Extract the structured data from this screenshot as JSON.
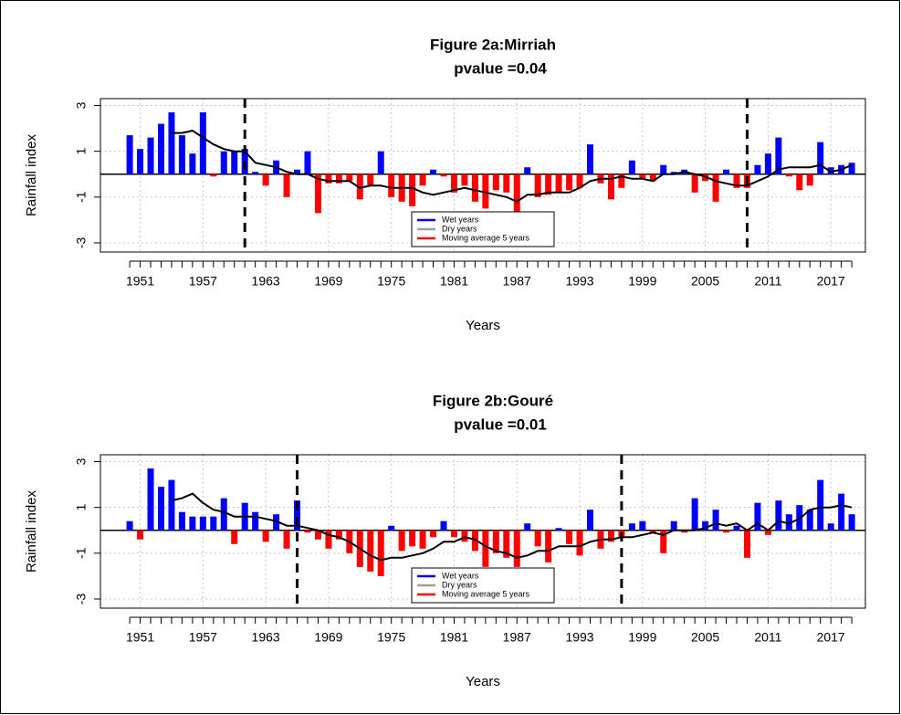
{
  "chart_data": [
    {
      "type": "bar",
      "title": "Figure 2a:Mirriah",
      "subtitle": "pvalue =0.04",
      "x_label": "Years",
      "y_label": "Rainfall index",
      "x": [
        1950,
        1951,
        1952,
        1953,
        1954,
        1955,
        1956,
        1957,
        1958,
        1959,
        1960,
        1961,
        1962,
        1963,
        1964,
        1965,
        1966,
        1967,
        1968,
        1969,
        1970,
        1971,
        1972,
        1973,
        1974,
        1975,
        1976,
        1977,
        1978,
        1979,
        1980,
        1981,
        1982,
        1983,
        1984,
        1985,
        1986,
        1987,
        1988,
        1989,
        1990,
        1991,
        1992,
        1993,
        1994,
        1995,
        1996,
        1997,
        1998,
        1999,
        2000,
        2001,
        2002,
        2003,
        2004,
        2005,
        2006,
        2007,
        2008,
        2009,
        2010,
        2011,
        2012,
        2013,
        2014,
        2015,
        2016,
        2017,
        2018,
        2019
      ],
      "values": [
        1.7,
        1.1,
        1.6,
        2.2,
        2.7,
        1.7,
        0.9,
        2.7,
        -0.1,
        1.0,
        1.0,
        1.1,
        0.1,
        -0.5,
        0.6,
        -1.0,
        0.2,
        1.0,
        -1.7,
        -0.4,
        -0.4,
        -0.3,
        -1.1,
        -0.5,
        1.0,
        -1.0,
        -1.2,
        -1.4,
        -0.5,
        0.2,
        -0.1,
        -0.8,
        -0.5,
        -1.2,
        -1.5,
        -0.7,
        -0.8,
        -1.7,
        0.3,
        -1.0,
        -0.9,
        -0.8,
        -0.7,
        -0.6,
        1.3,
        -0.4,
        -1.1,
        -0.6,
        0.6,
        -0.2,
        -0.3,
        0.4,
        0.1,
        0.2,
        -0.8,
        -0.3,
        -1.2,
        0.2,
        -0.6,
        -0.6,
        0.4,
        0.9,
        1.6,
        -0.1,
        -0.7,
        -0.5,
        1.4,
        0.3,
        0.4,
        0.5
      ],
      "moving_average": [
        null,
        null,
        null,
        null,
        1.8,
        1.8,
        1.9,
        1.6,
        1.3,
        1.1,
        1.0,
        1.0,
        0.5,
        0.4,
        0.3,
        0.1,
        0.0,
        0.0,
        -0.2,
        -0.3,
        -0.3,
        -0.3,
        -0.6,
        -0.5,
        -0.5,
        -0.6,
        -0.6,
        -0.6,
        -0.8,
        -0.9,
        -0.8,
        -0.7,
        -0.6,
        -0.7,
        -0.8,
        -0.9,
        -1.0,
        -1.2,
        -0.9,
        -0.9,
        -0.8,
        -0.8,
        -0.8,
        -0.6,
        -0.3,
        -0.2,
        -0.2,
        -0.1,
        -0.2,
        -0.2,
        -0.3,
        0.0,
        0.0,
        0.1,
        0.0,
        -0.1,
        -0.3,
        -0.4,
        -0.5,
        -0.5,
        -0.3,
        -0.1,
        0.2,
        0.3,
        0.3,
        0.3,
        0.4,
        0.1,
        0.2,
        0.4
      ],
      "positive_color": "#0000ff",
      "negative_color": "#ff0000",
      "line_color": "#000000",
      "breaks": [
        1961,
        2009
      ],
      "legend_items": [
        {
          "name": "Wet years",
          "color": "#0000ff"
        },
        {
          "name": "Dry years",
          "color": "#a0a0a0"
        },
        {
          "name": "Moving average 5 years",
          "color": "#ff0000"
        }
      ],
      "legend": "bottom",
      "xlim": [
        1947.2,
        2020.3
      ],
      "xticks": [
        1951,
        1957,
        1963,
        1969,
        1975,
        1981,
        1987,
        1993,
        1999,
        2005,
        2011,
        2017
      ],
      "ylim": [
        -3.4,
        3.3
      ],
      "yticks": [
        -3,
        -1,
        1,
        3
      ],
      "grid": true
    },
    {
      "type": "bar",
      "title": "Figure 2b:Gouré",
      "subtitle": "pvalue =0.01",
      "x_label": "Years",
      "y_label": "Rainfall index",
      "x": [
        1950,
        1951,
        1952,
        1953,
        1954,
        1955,
        1956,
        1957,
        1958,
        1959,
        1960,
        1961,
        1962,
        1963,
        1964,
        1965,
        1966,
        1967,
        1968,
        1969,
        1970,
        1971,
        1972,
        1973,
        1974,
        1975,
        1976,
        1977,
        1978,
        1979,
        1980,
        1981,
        1982,
        1983,
        1984,
        1985,
        1986,
        1987,
        1988,
        1989,
        1990,
        1991,
        1992,
        1993,
        1994,
        1995,
        1996,
        1997,
        1998,
        1999,
        2000,
        2001,
        2002,
        2003,
        2004,
        2005,
        2006,
        2007,
        2008,
        2009,
        2010,
        2011,
        2012,
        2013,
        2014,
        2015,
        2016,
        2017,
        2018,
        2019
      ],
      "values": [
        0.4,
        -0.4,
        2.7,
        1.9,
        2.2,
        0.8,
        0.6,
        0.6,
        0.6,
        1.4,
        -0.6,
        1.2,
        0.8,
        -0.5,
        0.7,
        -0.8,
        1.3,
        -0.1,
        -0.4,
        -0.8,
        -0.4,
        -1.0,
        -1.6,
        -1.8,
        -2.0,
        0.2,
        -0.9,
        -0.7,
        -0.8,
        -0.3,
        0.4,
        -0.3,
        -0.5,
        -0.9,
        -1.6,
        -1.0,
        -1.2,
        -1.6,
        0.3,
        -0.7,
        -1.4,
        0.1,
        -0.6,
        -1.1,
        0.9,
        -0.8,
        -0.5,
        -0.3,
        0.3,
        0.4,
        -0.1,
        -1.0,
        0.4,
        -0.1,
        1.4,
        0.4,
        0.9,
        -0.1,
        0.2,
        -1.2,
        1.2,
        -0.2,
        1.3,
        0.7,
        1.1,
        0.9,
        2.2,
        0.3,
        1.6,
        0.7
      ],
      "moving_average": [
        null,
        null,
        null,
        null,
        1.3,
        1.4,
        1.6,
        1.2,
        0.9,
        0.8,
        0.6,
        0.6,
        0.6,
        0.5,
        0.4,
        0.2,
        0.2,
        0.1,
        0.0,
        -0.2,
        -0.3,
        -0.5,
        -0.8,
        -1.1,
        -1.3,
        -1.2,
        -1.2,
        -1.1,
        -1.0,
        -0.8,
        -0.5,
        -0.5,
        -0.3,
        -0.4,
        -0.7,
        -0.9,
        -1.0,
        -1.2,
        -1.1,
        -0.9,
        -0.9,
        -0.7,
        -0.7,
        -0.7,
        -0.5,
        -0.4,
        -0.4,
        -0.3,
        -0.3,
        -0.2,
        -0.1,
        -0.2,
        0.0,
        0.0,
        0.0,
        0.1,
        0.3,
        0.2,
        0.3,
        0.0,
        0.3,
        0.0,
        0.4,
        0.3,
        0.5,
        0.9,
        1.0,
        1.0,
        1.1,
        1.0
      ],
      "positive_color": "#0000ff",
      "negative_color": "#ff0000",
      "line_color": "#000000",
      "breaks": [
        1966,
        1997
      ],
      "legend_items": [
        {
          "name": "Wet years",
          "color": "#0000ff"
        },
        {
          "name": "Dry years",
          "color": "#a0a0a0"
        },
        {
          "name": "Moving average 5 years",
          "color": "#ff0000"
        }
      ],
      "legend": "bottom",
      "xlim": [
        1947.2,
        2020.3
      ],
      "xticks": [
        1951,
        1957,
        1963,
        1969,
        1975,
        1981,
        1987,
        1993,
        1999,
        2005,
        2011,
        2017
      ],
      "ylim": [
        -3.4,
        3.3
      ],
      "yticks": [
        -3,
        -1,
        1,
        3
      ],
      "grid": true
    }
  ]
}
